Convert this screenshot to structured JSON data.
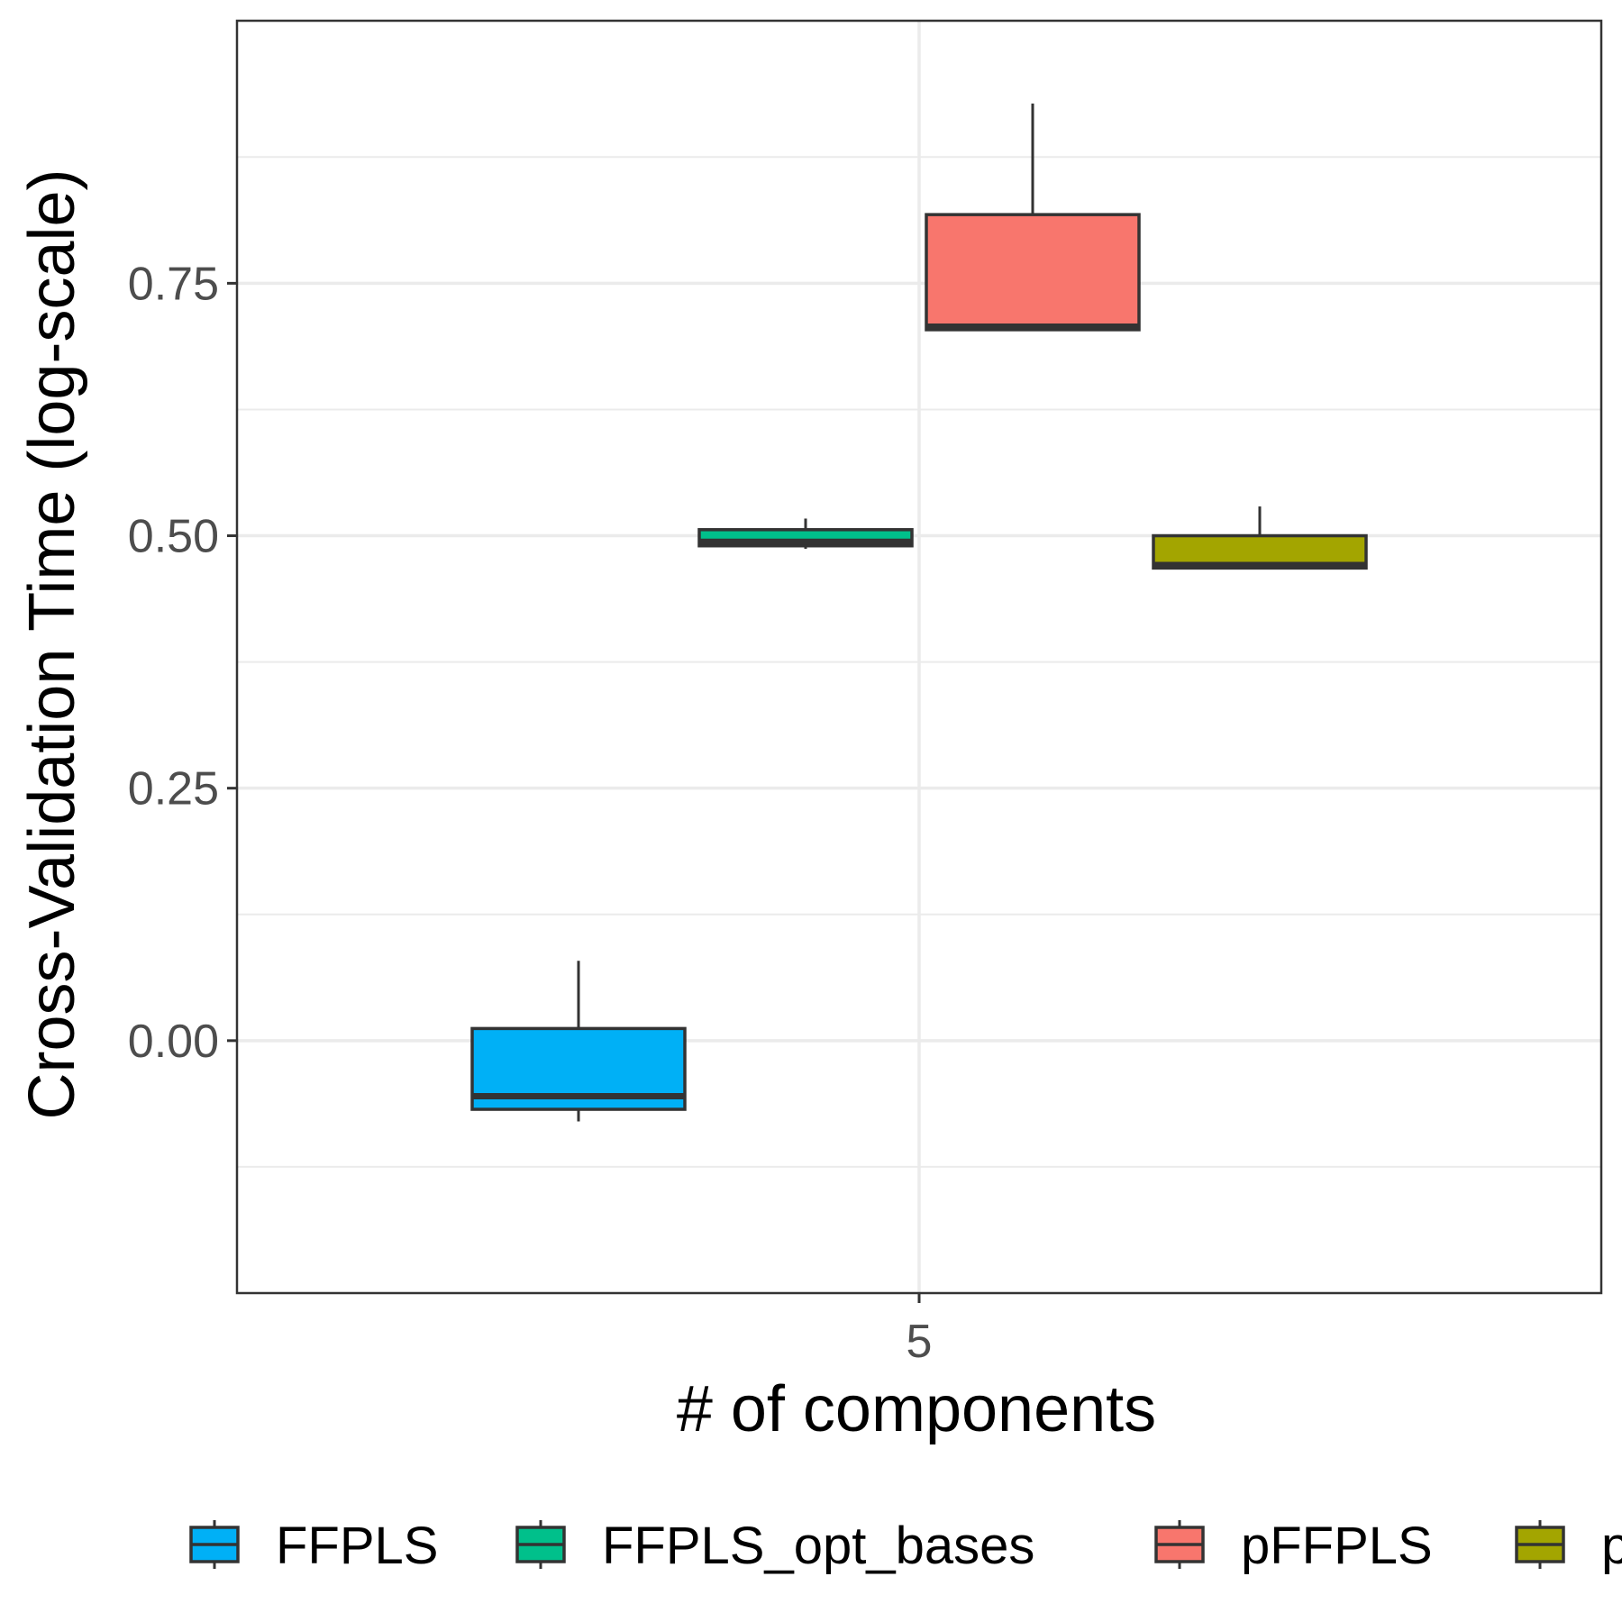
{
  "chart_data": {
    "type": "boxplot",
    "title": "",
    "xlabel": "# of components",
    "ylabel": "Cross-Validation Time (log-scale)",
    "categories": [
      "5"
    ],
    "ylim": [
      -0.25,
      1.01
    ],
    "yticks": [
      "0.00",
      "0.25",
      "0.50",
      "0.75"
    ],
    "yticks_values": [
      0,
      0.25,
      0.5,
      0.75
    ],
    "grid": true,
    "legend_position": "bottom",
    "series": [
      {
        "name": "FFPLS",
        "color": "#00b0f6",
        "category": "5",
        "min": -0.08,
        "q1": -0.068,
        "median": -0.055,
        "q3": 0.012,
        "max": 0.079
      },
      {
        "name": "FFPLS_opt_bases",
        "color": "#00c08b",
        "category": "5",
        "min": 0.487,
        "q1": 0.49,
        "median": 0.494,
        "q3": 0.506,
        "max": 0.517
      },
      {
        "name": "pFFPLS",
        "color": "#f8766d",
        "category": "5",
        "min": 0.703,
        "q1": 0.704,
        "median": 0.707,
        "q3": 0.818,
        "max": 0.928
      },
      {
        "name": "pFFPLS_opt_bases",
        "color": "#a3a500",
        "category": "5",
        "min": 0.467,
        "q1": 0.468,
        "median": 0.471,
        "q3": 0.5,
        "max": 0.529
      }
    ]
  }
}
